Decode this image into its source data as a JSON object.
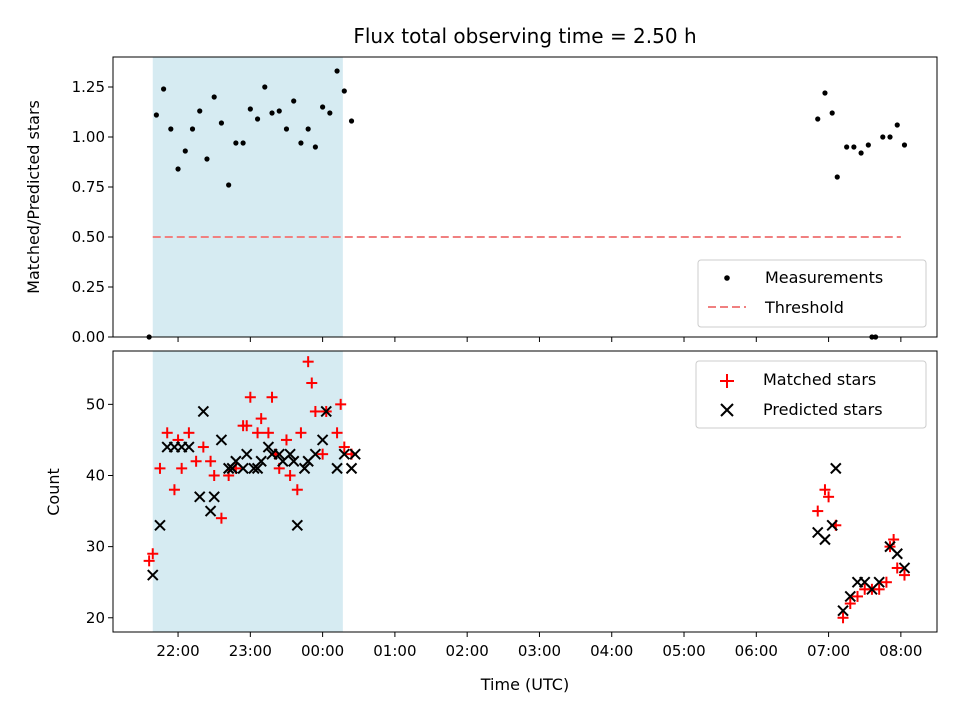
{
  "chart_data": [
    {
      "type": "scatter",
      "title": "Flux total observing time = 2.50 h",
      "xlabel": "",
      "ylabel": "Matched/Predicted stars",
      "ylim": [
        0,
        1.4
      ],
      "yticks": [
        0.0,
        0.25,
        0.5,
        0.75,
        1.0,
        1.25
      ],
      "ytick_labels": [
        "0.00",
        "0.25",
        "0.50",
        "0.75",
        "1.00",
        "1.25"
      ],
      "xlim_hours": [
        21.1,
        8.5
      ],
      "shaded_span_hours": [
        21.65,
        0.28
      ],
      "shaded_color": "#add8e6",
      "legend_position": "lower right",
      "series": [
        {
          "name": "Measurements",
          "kind": "scatter",
          "color": "#000000",
          "x_hours": [
            21.6,
            21.7,
            21.8,
            21.9,
            22.0,
            22.1,
            22.2,
            22.3,
            22.4,
            22.5,
            22.6,
            22.7,
            22.8,
            22.9,
            23.0,
            23.1,
            23.2,
            23.3,
            23.4,
            23.5,
            23.6,
            23.7,
            23.8,
            23.9,
            24.0,
            24.1,
            24.2,
            24.3,
            24.4,
            6.85,
            6.95,
            7.05,
            7.12,
            7.25,
            7.35,
            7.45,
            7.55,
            7.6,
            7.65,
            7.75,
            7.85,
            7.95,
            8.05
          ],
          "y": [
            0.0,
            1.11,
            1.24,
            1.04,
            0.84,
            0.93,
            1.04,
            1.13,
            0.89,
            1.2,
            1.07,
            0.76,
            0.97,
            0.97,
            1.14,
            1.09,
            1.25,
            1.12,
            1.13,
            1.04,
            1.18,
            0.97,
            1.04,
            0.95,
            1.15,
            1.12,
            1.33,
            1.23,
            1.08,
            1.09,
            1.22,
            1.12,
            0.8,
            0.95,
            0.95,
            0.92,
            0.96,
            0.0,
            0.0,
            1.0,
            1.0,
            1.06,
            0.96
          ]
        },
        {
          "name": "Threshold",
          "kind": "line",
          "color": "#f08080",
          "dash": true,
          "x_hours": [
            21.65,
            8.0
          ],
          "y": [
            0.5,
            0.5
          ]
        }
      ]
    },
    {
      "type": "scatter",
      "title": "",
      "xlabel": "Time (UTC)",
      "ylabel": "Count",
      "ylim": [
        18,
        57.5
      ],
      "yticks": [
        20,
        30,
        40,
        50
      ],
      "ytick_labels": [
        "20",
        "30",
        "40",
        "50"
      ],
      "xlim_hours": [
        21.1,
        8.5
      ],
      "xticks_hours": [
        22,
        23,
        0,
        1,
        2,
        3,
        4,
        5,
        6,
        7,
        8
      ],
      "xtick_labels": [
        "22:00",
        "23:00",
        "00:00",
        "01:00",
        "02:00",
        "03:00",
        "04:00",
        "05:00",
        "06:00",
        "07:00",
        "08:00"
      ],
      "shaded_span_hours": [
        21.65,
        0.28
      ],
      "shaded_color": "#add8e6",
      "legend_position": "upper right",
      "series": [
        {
          "name": "Matched stars",
          "marker": "plus",
          "color": "#ff0000",
          "x_hours": [
            21.6,
            21.65,
            21.75,
            21.85,
            21.95,
            22.0,
            22.05,
            22.15,
            22.25,
            22.35,
            22.45,
            22.5,
            22.6,
            22.7,
            22.8,
            22.9,
            22.95,
            23.0,
            23.1,
            23.15,
            23.25,
            23.3,
            23.35,
            23.4,
            23.5,
            23.55,
            23.65,
            23.7,
            23.8,
            23.85,
            23.9,
            24.0,
            24.05,
            24.2,
            24.25,
            24.3,
            24.4,
            6.85,
            6.95,
            7.0,
            7.1,
            7.2,
            7.3,
            7.4,
            7.5,
            7.6,
            7.7,
            7.8,
            7.85,
            7.9,
            7.95,
            8.05
          ],
          "y": [
            28,
            29,
            41,
            46,
            38,
            45,
            41,
            46,
            42,
            44,
            42,
            40,
            34,
            40,
            41,
            47,
            47,
            51,
            46,
            48,
            46,
            51,
            43,
            41,
            45,
            40,
            38,
            46,
            56,
            53,
            49,
            43,
            49,
            46,
            50,
            44,
            43,
            35,
            38,
            37,
            33,
            20,
            22,
            23,
            24,
            24,
            24,
            25,
            30,
            31,
            27,
            26
          ]
        },
        {
          "name": "Predicted stars",
          "marker": "x",
          "color": "#000000",
          "x_hours": [
            21.65,
            21.75,
            21.85,
            21.95,
            22.05,
            22.15,
            22.3,
            22.35,
            22.45,
            22.5,
            22.6,
            22.7,
            22.75,
            22.8,
            22.9,
            22.95,
            23.05,
            23.1,
            23.15,
            23.25,
            23.3,
            23.4,
            23.45,
            23.55,
            23.6,
            23.65,
            23.75,
            23.8,
            23.9,
            24.0,
            24.05,
            24.2,
            24.3,
            24.4,
            24.45,
            6.85,
            6.95,
            7.05,
            7.1,
            7.2,
            7.3,
            7.4,
            7.5,
            7.6,
            7.7,
            7.85,
            7.95,
            8.05
          ],
          "y": [
            26,
            33,
            44,
            44,
            44,
            44,
            37,
            49,
            35,
            37,
            45,
            41,
            41,
            42,
            41,
            43,
            41,
            41,
            42,
            44,
            43,
            43,
            42,
            43,
            42,
            33,
            41,
            42,
            43,
            45,
            49,
            41,
            43,
            41,
            43,
            32,
            31,
            33,
            41,
            21,
            23,
            25,
            25,
            24,
            25,
            30,
            29,
            27
          ]
        }
      ]
    }
  ],
  "legend": {
    "top": [
      "Measurements",
      "Threshold"
    ],
    "bottom": [
      "Matched stars",
      "Predicted stars"
    ]
  }
}
